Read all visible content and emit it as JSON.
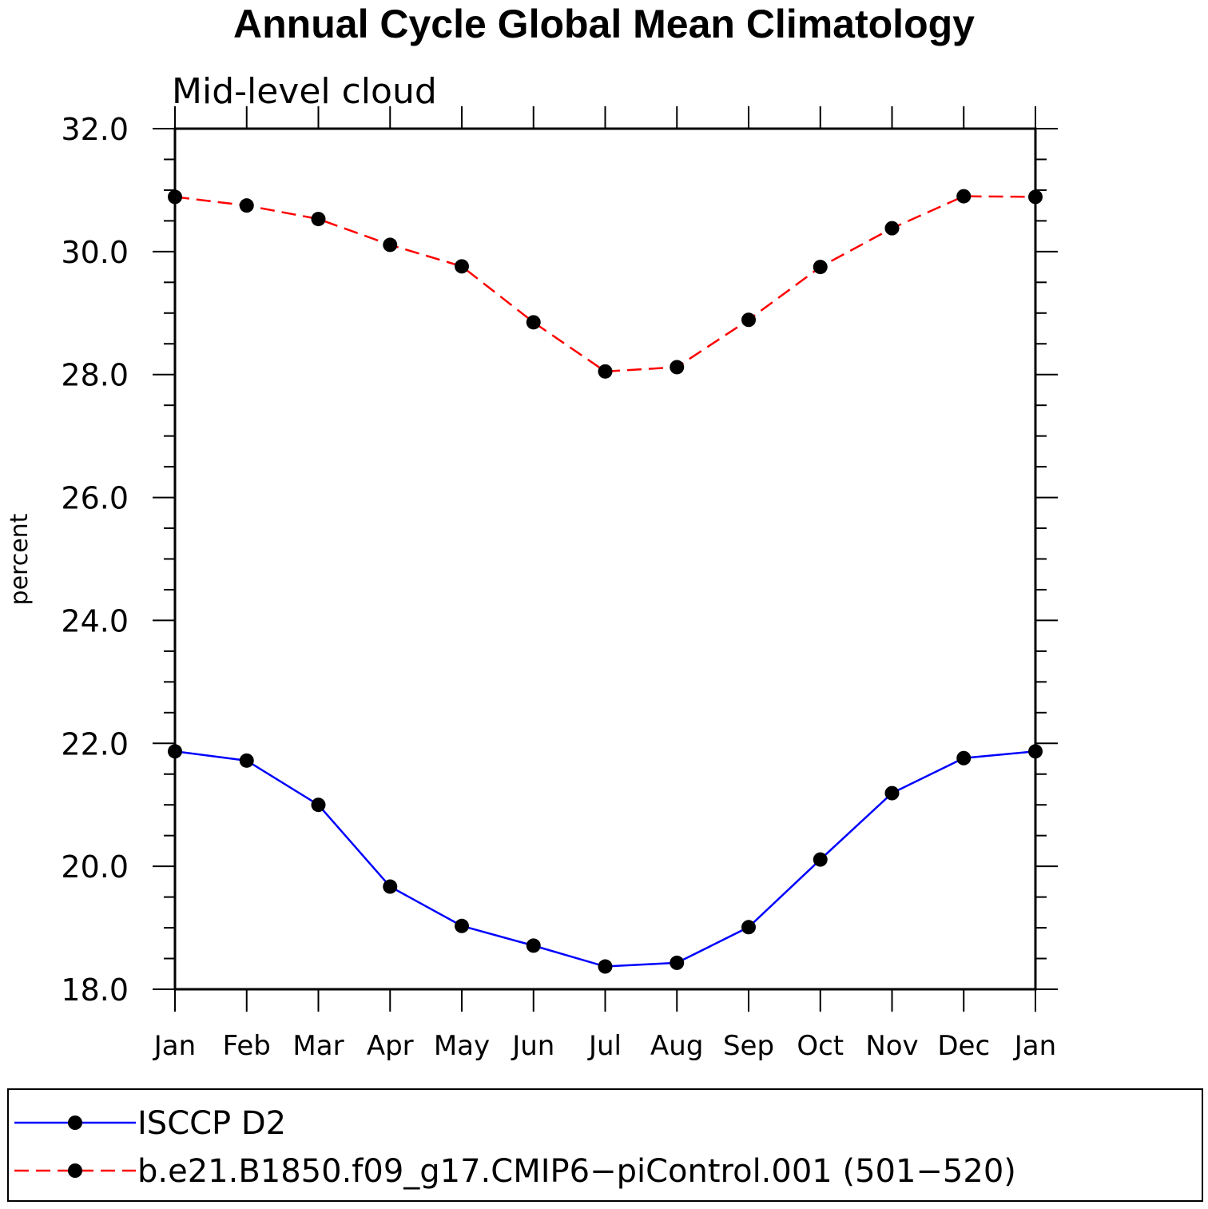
{
  "chart_data": {
    "type": "line",
    "title": "Annual Cycle Global Mean Climatology",
    "subtitle": "Mid-level cloud",
    "xlabel": "",
    "ylabel": "percent",
    "ylim": [
      18.0,
      32.0
    ],
    "yticks": [
      "18.0",
      "20.0",
      "22.0",
      "24.0",
      "26.0",
      "28.0",
      "30.0",
      "32.0"
    ],
    "categories": [
      "Jan",
      "Feb",
      "Mar",
      "Apr",
      "May",
      "Jun",
      "Jul",
      "Aug",
      "Sep",
      "Oct",
      "Nov",
      "Dec",
      "Jan"
    ],
    "series": [
      {
        "name": "ISCCP D2",
        "color": "#0000ff",
        "dash": "solid",
        "marker": "filled-circle",
        "values": [
          21.87,
          21.72,
          21.0,
          19.67,
          19.03,
          18.71,
          18.37,
          18.43,
          19.01,
          20.11,
          21.19,
          21.76,
          21.87
        ]
      },
      {
        "name": "b.e21.B1850.f09_g17.CMIP6−piControl.001 (501−520)",
        "color": "#ff0000",
        "dash": "dashed",
        "marker": "filled-circle",
        "values": [
          30.89,
          30.75,
          30.53,
          30.11,
          29.76,
          28.85,
          28.05,
          28.12,
          28.89,
          29.75,
          30.38,
          30.9,
          30.89
        ]
      }
    ],
    "legend_position": "bottom",
    "grid": false
  }
}
